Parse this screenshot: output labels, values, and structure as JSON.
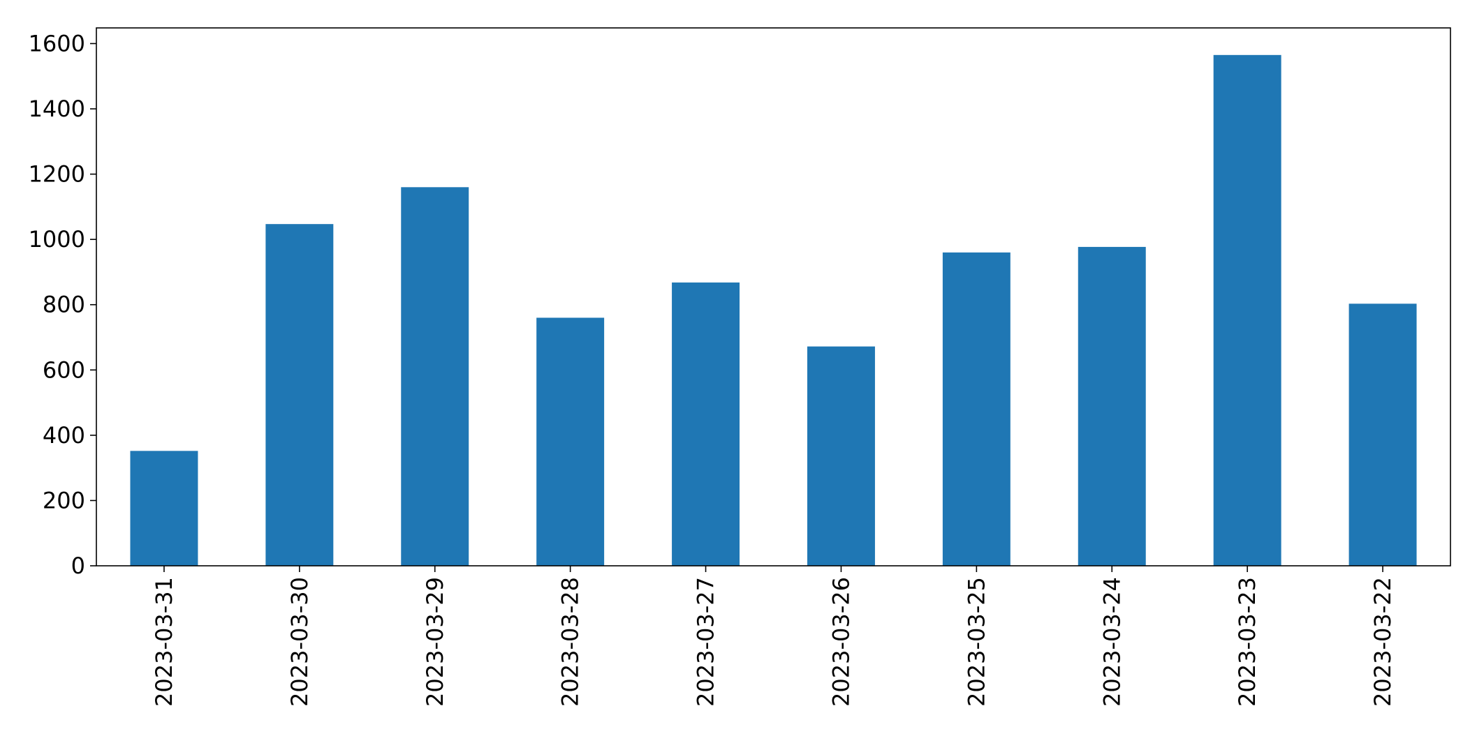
{
  "chart_data": {
    "type": "bar",
    "title": "",
    "xlabel": "",
    "ylabel": "",
    "categories": [
      "2023-03-31",
      "2023-03-30",
      "2023-03-29",
      "2023-03-28",
      "2023-03-27",
      "2023-03-26",
      "2023-03-25",
      "2023-03-24",
      "2023-03-23",
      "2023-03-22"
    ],
    "values": [
      352,
      1047,
      1160,
      760,
      868,
      672,
      960,
      977,
      1565,
      803
    ],
    "ylim": [
      0,
      1600
    ],
    "yticks": [
      0,
      200,
      400,
      600,
      800,
      1000,
      1200,
      1400,
      1600
    ],
    "ytick_labels": [
      "0",
      "200",
      "400",
      "600",
      "800",
      "1000",
      "1200",
      "1400",
      "1600"
    ],
    "grid": false,
    "legend": "none",
    "bar_color": "#1f77b4",
    "x_label_rotation_deg": -90
  }
}
